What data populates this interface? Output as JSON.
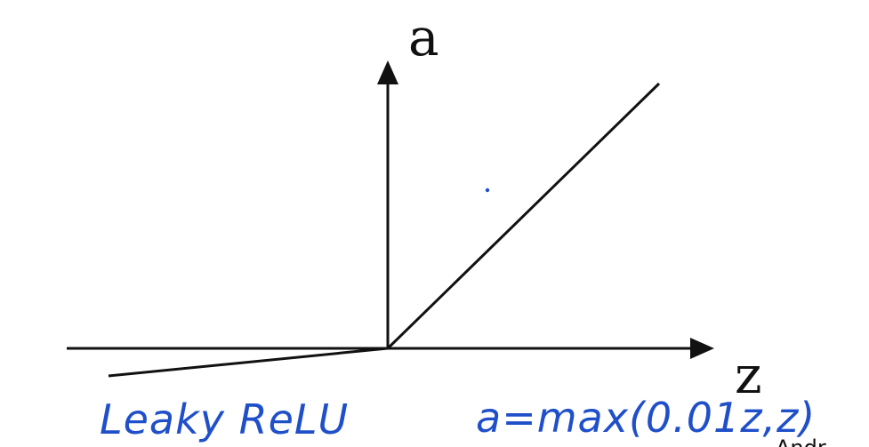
{
  "diagram": {
    "y_axis_label": "a",
    "x_axis_label": "z",
    "caption": "Leaky ReLU",
    "formula": "a=max(0.01z,z)",
    "corner_text": "Andr",
    "line_color": "#111111",
    "ink_color": "#1f4fc9"
  }
}
